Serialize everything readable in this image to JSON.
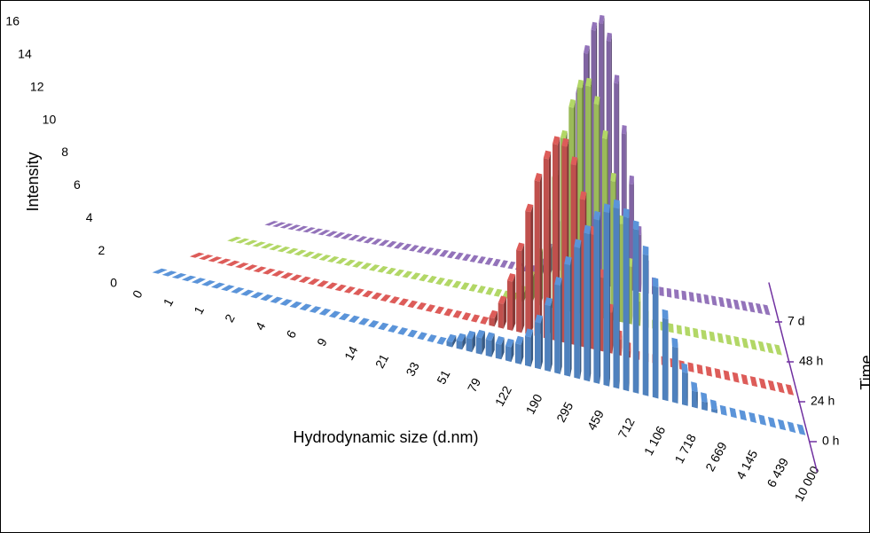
{
  "chart_data": {
    "type": "bar3d",
    "y_label": "Intensity",
    "x_label": "Hydrodynamic size (d.nm)",
    "z_label": "Time",
    "categories": [
      "0",
      null,
      null,
      "1",
      null,
      null,
      "1",
      null,
      null,
      "2",
      null,
      null,
      "4",
      null,
      null,
      "6",
      null,
      null,
      "9",
      null,
      null,
      "14",
      null,
      null,
      "21",
      null,
      null,
      "33",
      null,
      null,
      "51",
      null,
      null,
      "79",
      null,
      null,
      "122",
      null,
      null,
      "190",
      null,
      null,
      "295",
      null,
      null,
      "459",
      null,
      null,
      "712",
      null,
      null,
      "1 106",
      null,
      null,
      "1 718",
      null,
      null,
      "2 669",
      null,
      null,
      "4 145",
      null,
      null,
      "6 439",
      null,
      null,
      "10 000"
    ],
    "series": [
      {
        "name": "0 h",
        "color": "#4f81bd",
        "values": [
          0,
          0,
          0,
          0,
          0,
          0,
          0,
          0,
          0,
          0,
          0,
          0,
          0,
          0,
          0,
          0,
          0,
          0,
          0,
          0,
          0,
          0,
          0,
          0,
          0,
          0,
          0,
          0,
          0,
          0,
          0.3,
          0.5,
          0.8,
          1.0,
          1.0,
          0.9,
          0.9,
          1.2,
          1.8,
          2.8,
          4.0,
          5.4,
          6.8,
          8.0,
          9.0,
          10.0,
          10.6,
          11.0,
          10.6,
          10.0,
          8.6,
          6.8,
          5.0,
          3.4,
          2.0,
          1.0,
          0.5,
          0.2,
          0,
          0,
          0,
          0,
          0,
          0,
          0,
          0,
          0
        ]
      },
      {
        "name": "24 h",
        "color": "#c0504d",
        "values": [
          0,
          0,
          0,
          0,
          0,
          0,
          0,
          0,
          0,
          0,
          0,
          0,
          0,
          0,
          0,
          0,
          0,
          0,
          0,
          0,
          0,
          0,
          0,
          0,
          0,
          0,
          0,
          0,
          0,
          0,
          0,
          0,
          0,
          0.5,
          1.5,
          3,
          5,
          7.5,
          9.5,
          11,
          12,
          12,
          11,
          9,
          7,
          4.5,
          2.5,
          1,
          0.4,
          0,
          0,
          0,
          0,
          0,
          0,
          0,
          0,
          0,
          0,
          0,
          0,
          0,
          0,
          0,
          0,
          0,
          0
        ]
      },
      {
        "name": "48 h",
        "color": "#9bbb59",
        "values": [
          0,
          0,
          0,
          0,
          0,
          0,
          0,
          0,
          0,
          0,
          0,
          0,
          0,
          0,
          0,
          0,
          0,
          0,
          0,
          0,
          0,
          0,
          0,
          0,
          0,
          0,
          0,
          0,
          0,
          0,
          0,
          0,
          0,
          0,
          0,
          0.5,
          1.5,
          3,
          5.5,
          8,
          10.5,
          12.5,
          13.8,
          14,
          13,
          11,
          8.5,
          6,
          3.5,
          1.5,
          0.5,
          0,
          0,
          0,
          0,
          0,
          0,
          0,
          0,
          0,
          0,
          0,
          0,
          0,
          0,
          0,
          0
        ]
      },
      {
        "name": "7 d",
        "color": "#8064a2",
        "values": [
          0,
          0,
          0,
          0,
          0,
          0,
          0,
          0,
          0,
          0,
          0,
          0,
          0,
          0,
          0,
          0,
          0,
          0,
          0,
          0,
          0,
          0,
          0,
          0,
          0,
          0,
          0,
          0,
          0,
          0,
          0,
          0,
          0,
          0,
          0,
          0,
          0.5,
          1.5,
          3,
          5.5,
          8.5,
          11.5,
          14,
          15.5,
          16,
          15,
          12.5,
          9.5,
          6.5,
          3.5,
          1.5,
          0.5,
          0,
          0,
          0,
          0,
          0,
          0,
          0,
          0,
          0,
          0,
          0,
          0,
          0,
          0,
          0
        ]
      }
    ],
    "ylim": [
      0,
      16
    ],
    "yticks": [
      0,
      2,
      4,
      6,
      8,
      10,
      12,
      14,
      16
    ],
    "axis_color": "#7030a0"
  }
}
